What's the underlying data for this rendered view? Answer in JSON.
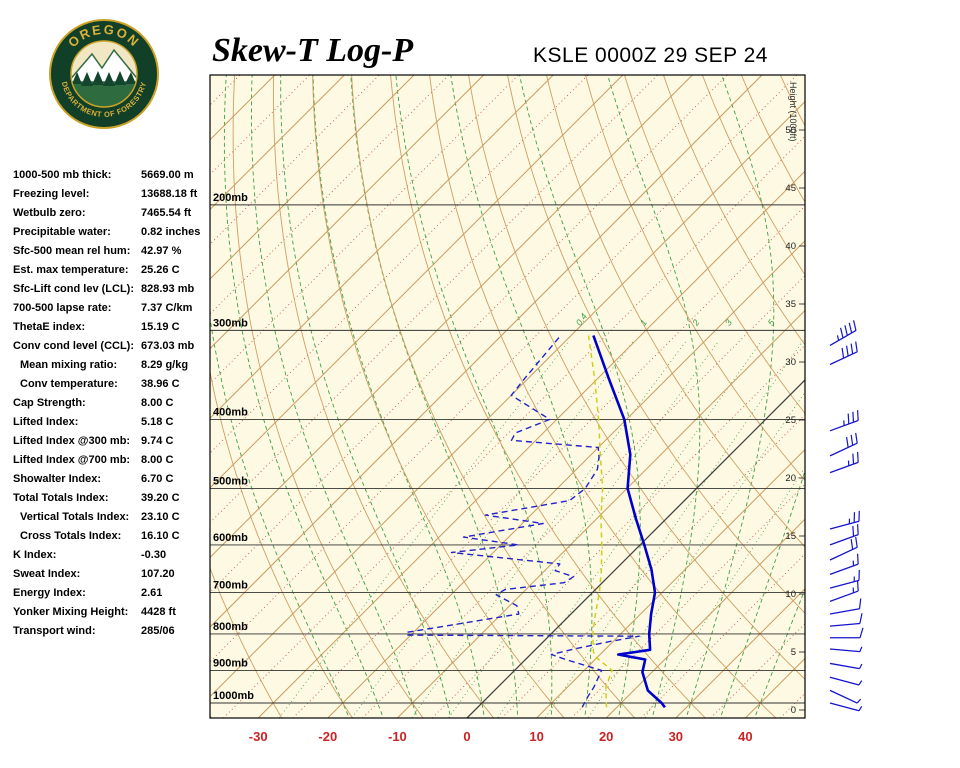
{
  "header": {
    "title": "Skew-T Log-P",
    "station": "KSLE 0000Z 29 SEP 24"
  },
  "logo": {
    "top_text": "OREGON",
    "bottom_text": "DEPARTMENT OF FORESTRY"
  },
  "stats": [
    {
      "label": "1000-500 mb thick:",
      "value": "5669.00 m"
    },
    {
      "label": "Freezing level:",
      "value": "13688.18 ft"
    },
    {
      "label": "Wetbulb zero:",
      "value": "7465.54 ft"
    },
    {
      "label": "Precipitable water:",
      "value": "0.82 inches"
    },
    {
      "label": "Sfc-500 mean rel hum:",
      "value": "42.97 %"
    },
    {
      "label": "Est. max temperature:",
      "value": "25.26 C"
    },
    {
      "label": "Sfc-Lift cond lev (LCL):",
      "value": "828.93 mb"
    },
    {
      "label": "700-500 lapse rate:",
      "value": "7.37 C/km"
    },
    {
      "label": "ThetaE index:",
      "value": "15.19 C"
    },
    {
      "label": "Conv cond level (CCL):",
      "value": "673.03 mb"
    },
    {
      "label": "Mean mixing ratio:",
      "value": "8.29 g/kg",
      "indent": true
    },
    {
      "label": "Conv temperature:",
      "value": "38.96 C",
      "indent": true
    },
    {
      "label": "Cap Strength:",
      "value": "8.00 C"
    },
    {
      "label": "Lifted Index:",
      "value": "5.18 C"
    },
    {
      "label": "Lifted Index @300 mb:",
      "value": "9.74 C"
    },
    {
      "label": "Lifted Index @700 mb:",
      "value": "8.00 C"
    },
    {
      "label": "Showalter Index:",
      "value": "6.70 C"
    },
    {
      "label": "Total Totals Index:",
      "value": "39.20 C"
    },
    {
      "label": "Vertical Totals Index:",
      "value": "23.10 C",
      "indent": true
    },
    {
      "label": "Cross Totals Index:",
      "value": "16.10 C",
      "indent": true
    },
    {
      "label": "K Index:",
      "value": "-0.30"
    },
    {
      "label": "Sweat Index:",
      "value": "107.20"
    },
    {
      "label": "Energy Index:",
      "value": "2.61"
    },
    {
      "label": "Yonker Mixing Height:",
      "value": "4428 ft"
    },
    {
      "label": "Transport wind:",
      "value": "285/06"
    }
  ],
  "chart_data": {
    "type": "skewt",
    "title": "Skew-T Log-P",
    "station": "KSLE 0000Z 29 SEP 24",
    "x_axis": {
      "label_values": [
        -30,
        -20,
        -10,
        0,
        10,
        20,
        30,
        40
      ],
      "units": "C"
    },
    "pressure_lines": [
      200,
      300,
      400,
      500,
      600,
      700,
      800,
      900,
      1000
    ],
    "pressure_suffix": "mb",
    "height_ticks": [
      0,
      5,
      10,
      15,
      20,
      25,
      30,
      35,
      40,
      45,
      50
    ],
    "height_axis_label": "Height (1000ft)",
    "mixing_ratio_lines": [
      0.4,
      1,
      2,
      3,
      5,
      8,
      12,
      20
    ],
    "isotherms": {
      "min": -130,
      "max": 50,
      "major_step": 10,
      "minor_step": 5
    },
    "dry_adiabats": {
      "min": -40,
      "max": 160,
      "step": 10
    },
    "moist_adiabats": {
      "min": -20,
      "max": 40,
      "step": 5
    },
    "series": {
      "temperature": [
        [
          1014,
          26.9
        ],
        [
          1000,
          25.8
        ],
        [
          960,
          22.0
        ],
        [
          905,
          18.6
        ],
        [
          869,
          17.2
        ],
        [
          855,
          12.6
        ],
        [
          842,
          16.5
        ],
        [
          800,
          14.1
        ],
        [
          750,
          11.5
        ],
        [
          700,
          9.0
        ],
        [
          650,
          5.2
        ],
        [
          600,
          0.6
        ],
        [
          550,
          -4.5
        ],
        [
          500,
          -9.9
        ],
        [
          448,
          -14.4
        ],
        [
          400,
          -20.3
        ],
        [
          350,
          -28.5
        ],
        [
          305,
          -36.8
        ]
      ],
      "dewpoint": [
        [
          1014,
          15.0
        ],
        [
          975,
          14.2
        ],
        [
          950,
          13.8
        ],
        [
          900,
          12.5
        ],
        [
          870,
          6.0
        ],
        [
          855,
          3.0
        ],
        [
          840,
          5.5
        ],
        [
          820,
          9.5
        ],
        [
          806,
          13.0
        ],
        [
          803,
          -20.5
        ],
        [
          796,
          -21.0
        ],
        [
          750,
          -7.5
        ],
        [
          730,
          -9.0
        ],
        [
          705,
          -13.5
        ],
        [
          693,
          -13.0
        ],
        [
          678,
          -5.5
        ],
        [
          665,
          -5.0
        ],
        [
          652,
          -8.5
        ],
        [
          638,
          -8.8
        ],
        [
          615,
          -26.0
        ],
        [
          600,
          -17.5
        ],
        [
          585,
          -26.5
        ],
        [
          560,
          -17.0
        ],
        [
          545,
          -26.5
        ],
        [
          520,
          -16.5
        ],
        [
          500,
          -16.0
        ],
        [
          470,
          -17.0
        ],
        [
          452,
          -18.5
        ],
        [
          438,
          -20.0
        ],
        [
          428,
          -33.5
        ],
        [
          418,
          -34.0
        ],
        [
          400,
          -31.0
        ],
        [
          370,
          -40.0
        ],
        [
          350,
          -40.5
        ],
        [
          305,
          -41.5
        ]
      ],
      "wetbulb": [
        [
          1014,
          18.5
        ],
        [
          950,
          15.5
        ],
        [
          900,
          14.0
        ],
        [
          860,
          9.5
        ],
        [
          845,
          8.5
        ],
        [
          800,
          6.0
        ],
        [
          750,
          3.5
        ],
        [
          700,
          1.0
        ],
        [
          650,
          -2.0
        ],
        [
          600,
          -5.5
        ],
        [
          550,
          -9.5
        ],
        [
          500,
          -13.5
        ],
        [
          450,
          -18.5
        ],
        [
          400,
          -24.0
        ],
        [
          350,
          -30.5
        ],
        [
          305,
          -37.5
        ]
      ]
    },
    "winds": [
      {
        "p": 315,
        "dir": 240,
        "spd": 45
      },
      {
        "p": 335,
        "dir": 245,
        "spd": 40
      },
      {
        "p": 415,
        "dir": 250,
        "spd": 35
      },
      {
        "p": 450,
        "dir": 245,
        "spd": 30
      },
      {
        "p": 475,
        "dir": 250,
        "spd": 25
      },
      {
        "p": 570,
        "dir": 255,
        "spd": 25
      },
      {
        "p": 600,
        "dir": 250,
        "spd": 20
      },
      {
        "p": 630,
        "dir": 245,
        "spd": 20
      },
      {
        "p": 660,
        "dir": 250,
        "spd": 15
      },
      {
        "p": 690,
        "dir": 255,
        "spd": 15
      },
      {
        "p": 720,
        "dir": 250,
        "spd": 15
      },
      {
        "p": 750,
        "dir": 260,
        "spd": 10
      },
      {
        "p": 780,
        "dir": 265,
        "spd": 10
      },
      {
        "p": 810,
        "dir": 270,
        "spd": 10
      },
      {
        "p": 840,
        "dir": 275,
        "spd": 5
      },
      {
        "p": 880,
        "dir": 280,
        "spd": 5
      },
      {
        "p": 920,
        "dir": 285,
        "spd": 5
      },
      {
        "p": 960,
        "dir": 295,
        "spd": 5
      },
      {
        "p": 1000,
        "dir": 285,
        "spd": 6
      }
    ],
    "colors": {
      "background": "#fdf9e3",
      "isotherm": "#c99a5b",
      "isotherm_minor": "#cc5555",
      "zero_isotherm": "#444444",
      "dry_adiabat": "#cf9f63",
      "moist_adiabat": "#3fa046",
      "mixing_ratio": "#3fa046",
      "temperature": "#0000cc",
      "dewpoint": "#2222cc",
      "wetbulb": "#cfcf1a",
      "wind_barb": "#1414cc",
      "axis_label": "#cc2222",
      "pressure_label": "#000000",
      "logo_green": "#123f27",
      "logo_gold": "#d9b13b"
    }
  }
}
